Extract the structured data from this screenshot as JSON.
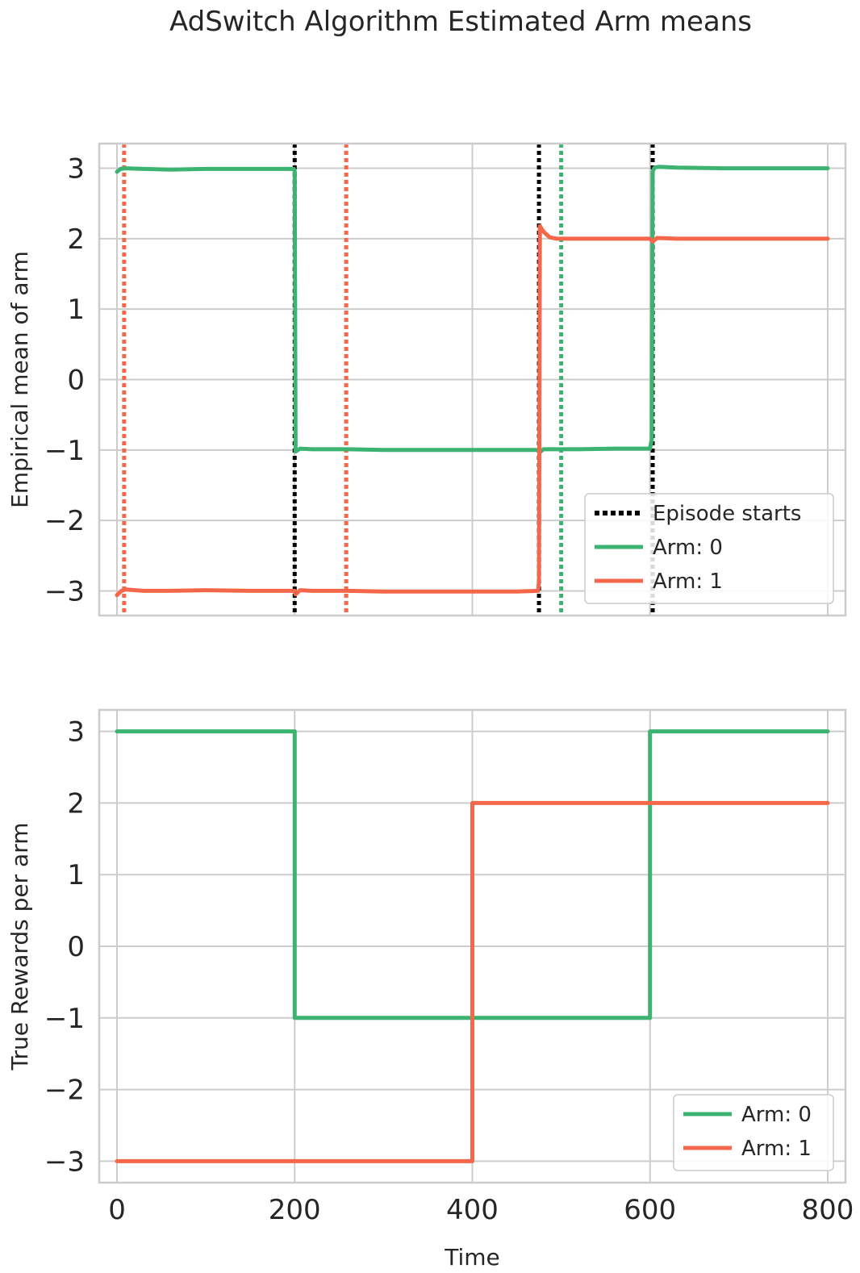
{
  "figure": {
    "title": "AdSwitch Algorithm Estimated Arm means"
  },
  "colors": {
    "arm0": "#3cb371",
    "arm1": "#f4674a",
    "episode": "#000000",
    "grid": "#cccccc",
    "spine": "#cccccc",
    "text": "#262626"
  },
  "chart_data": [
    {
      "type": "line",
      "title": "",
      "xlabel": "",
      "ylabel": "Empirical mean of arm",
      "xlim": [
        -20,
        820
      ],
      "ylim": [
        -3.35,
        3.35
      ],
      "xticks": [
        0,
        200,
        400,
        600,
        800
      ],
      "xtick_labels_shown": false,
      "yticks": [
        3,
        2,
        1,
        0,
        -1,
        -2,
        -3
      ],
      "ytick_labels": [
        "3",
        "2",
        "1",
        "0",
        "−1",
        "−2",
        "−3"
      ],
      "grid": true,
      "legend": {
        "placement": "lower-right",
        "entries": [
          "Episode starts",
          "Arm: 0",
          "Arm: 1"
        ]
      },
      "episode_starts": [
        200,
        475,
        603
      ],
      "detections": [
        {
          "x": 8,
          "arm": 1
        },
        {
          "x": 258,
          "arm": 1
        },
        {
          "x": 500,
          "arm": 0
        }
      ],
      "series": [
        {
          "name": "Arm: 0",
          "x": [
            0,
            4,
            10,
            30,
            60,
            100,
            150,
            199,
            200,
            201,
            206,
            220,
            260,
            300,
            350,
            400,
            450,
            474,
            477,
            480,
            490,
            520,
            560,
            600,
            602,
            603,
            605,
            610,
            630,
            680,
            750,
            800
          ],
          "y": [
            2.95,
            2.99,
            3.0,
            2.99,
            2.98,
            2.99,
            2.99,
            2.99,
            2.96,
            -1.02,
            -0.98,
            -0.99,
            -0.99,
            -1.0,
            -1.0,
            -1.0,
            -1.0,
            -1.0,
            -1.02,
            -0.99,
            -0.99,
            -0.99,
            -0.98,
            -0.98,
            -0.85,
            2.95,
            3.01,
            3.02,
            3.01,
            3.0,
            3.0,
            3.0
          ]
        },
        {
          "name": "Arm: 1",
          "x": [
            0,
            5,
            10,
            30,
            60,
            100,
            150,
            200,
            201,
            206,
            220,
            260,
            300,
            350,
            400,
            450,
            474,
            475,
            476,
            480,
            487,
            495,
            520,
            560,
            600,
            603,
            608,
            630,
            680,
            750,
            800
          ],
          "y": [
            -3.06,
            -3.0,
            -2.98,
            -3.0,
            -3.0,
            -2.99,
            -3.0,
            -3.0,
            -3.05,
            -2.99,
            -3.0,
            -3.0,
            -3.01,
            -3.01,
            -3.01,
            -3.01,
            -3.0,
            -2.85,
            2.18,
            2.1,
            2.02,
            2.0,
            2.0,
            2.0,
            2.0,
            1.96,
            2.01,
            2.0,
            2.0,
            2.0,
            2.0
          ]
        }
      ]
    },
    {
      "type": "line",
      "title": "",
      "xlabel": "Time",
      "ylabel": "True Rewards per arm",
      "xlim": [
        -20,
        820
      ],
      "ylim": [
        -3.3,
        3.3
      ],
      "xticks": [
        0,
        200,
        400,
        600,
        800
      ],
      "xtick_labels": [
        "0",
        "200",
        "400",
        "600",
        "800"
      ],
      "yticks": [
        3,
        2,
        1,
        0,
        -1,
        -2,
        -3
      ],
      "ytick_labels": [
        "3",
        "2",
        "1",
        "0",
        "−1",
        "−2",
        "−3"
      ],
      "grid": true,
      "legend": {
        "placement": "lower-right",
        "entries": [
          "Arm: 0",
          "Arm: 1"
        ]
      },
      "series": [
        {
          "name": "Arm: 0",
          "x": [
            0,
            200,
            200,
            600,
            600,
            800
          ],
          "y": [
            3,
            3,
            -1,
            -1,
            3,
            3
          ]
        },
        {
          "name": "Arm: 1",
          "x": [
            0,
            400,
            400,
            800
          ],
          "y": [
            -3,
            -3,
            2,
            2
          ]
        }
      ]
    }
  ]
}
